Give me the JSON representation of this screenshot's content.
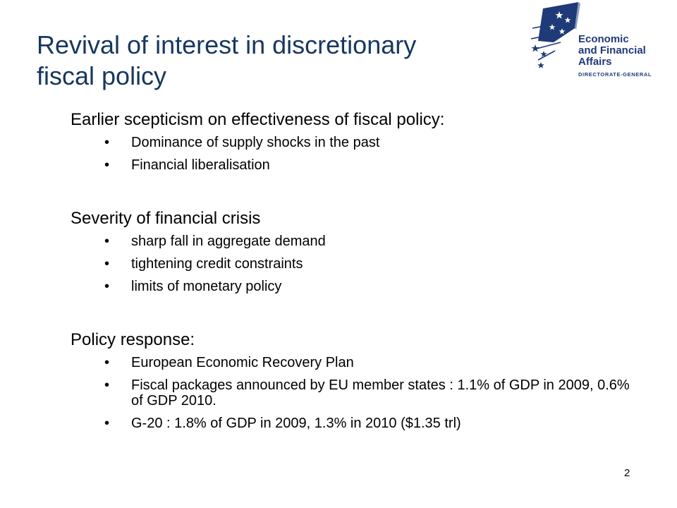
{
  "slide": {
    "title_line1": "Revival of interest in discretionary",
    "title_line2": "fiscal policy",
    "page_number": "2"
  },
  "logo": {
    "line1": "Economic",
    "line2": "and Financial Affairs",
    "line3": "DIRECTORATE-GENERAL",
    "primary_color": "#1f3a78"
  },
  "sections": [
    {
      "heading": "Earlier scepticism on effectiveness of fiscal policy:",
      "bullets": [
        "Dominance of supply shocks in the past",
        "Financial liberalisation"
      ]
    },
    {
      "heading": "Severity of financial crisis",
      "bullets": [
        "sharp fall in aggregate demand",
        "tightening credit constraints",
        "limits of monetary policy"
      ]
    },
    {
      "heading": "Policy response:",
      "bullets": [
        "European Economic Recovery Plan",
        "Fiscal packages announced by EU member states : 1.1% of GDP in 2009, 0.6% of GDP 2010.",
        "G-20 : 1.8% of GDP in 2009, 1.3% in 2010  ($1.35 trl)"
      ]
    }
  ],
  "bullet_glyph": "•",
  "colors": {
    "title": "#17375e",
    "text": "#000000"
  }
}
